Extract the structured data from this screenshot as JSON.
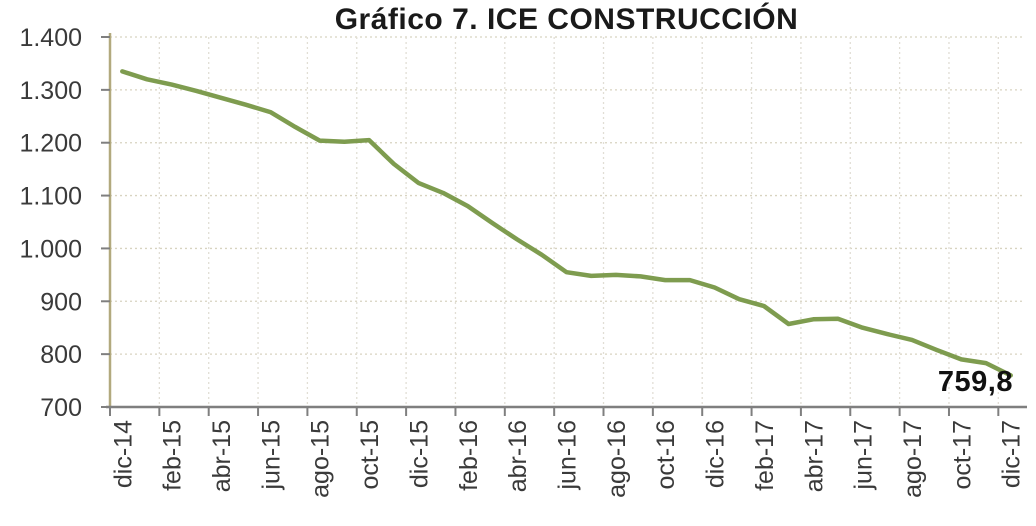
{
  "chart_data": {
    "type": "line",
    "title": "Gráfico 7. ICE CONSTRUCCIÓN",
    "end_label": "759,8",
    "categories": [
      "dic-14",
      "ene-15",
      "feb-15",
      "mar-15",
      "abr-15",
      "may-15",
      "jun-15",
      "jul-15",
      "ago-15",
      "sep-15",
      "oct-15",
      "nov-15",
      "dic-15",
      "ene-16",
      "feb-16",
      "mar-16",
      "abr-16",
      "may-16",
      "jun-16",
      "jul-16",
      "ago-16",
      "sep-16",
      "oct-16",
      "nov-16",
      "dic-16",
      "ene-17",
      "feb-17",
      "mar-17",
      "abr-17",
      "may-17",
      "jun-17",
      "jul-17",
      "ago-17",
      "sep-17",
      "oct-17",
      "nov-17",
      "dic-17"
    ],
    "values": [
      1335,
      1320,
      1310,
      1298,
      1285,
      1272,
      1258,
      1230,
      1204,
      1202,
      1205,
      1160,
      1124,
      1105,
      1080,
      1048,
      1017,
      988,
      955,
      948,
      950,
      947,
      940,
      940,
      926,
      904,
      891,
      857,
      866,
      867,
      850,
      838,
      827,
      808,
      790,
      783,
      759.8
    ],
    "x_tick_labels": [
      "dic-14",
      "feb-15",
      "abr-15",
      "jun-15",
      "ago-15",
      "oct-15",
      "dic-15",
      "feb-16",
      "abr-16",
      "jun-16",
      "ago-16",
      "oct-16",
      "dic-16",
      "feb-17",
      "abr-17",
      "jun-17",
      "ago-17",
      "oct-17",
      "dic-17"
    ],
    "y_ticks": [
      {
        "value": 1400,
        "label": "1.400"
      },
      {
        "value": 1300,
        "label": "1.300"
      },
      {
        "value": 1200,
        "label": "1.200"
      },
      {
        "value": 1100,
        "label": "1.100"
      },
      {
        "value": 1000,
        "label": "1.000"
      },
      {
        "value": 900,
        "label": "900"
      },
      {
        "value": 800,
        "label": "800"
      },
      {
        "value": 700,
        "label": "700"
      }
    ],
    "ylim": [
      700,
      1400
    ],
    "grid": true,
    "legend_position": "none",
    "colors": {
      "line": "#7E9C4F",
      "y_axis": "#B2A97E",
      "x_axis": "#7F7F7F",
      "tick": "#7F7F7F",
      "grid_horizontal": "#D8D3C0",
      "grid_vertical": "#E1DED5",
      "label_text": "#3A3A3A",
      "title_text": "#1A1A1A"
    }
  }
}
